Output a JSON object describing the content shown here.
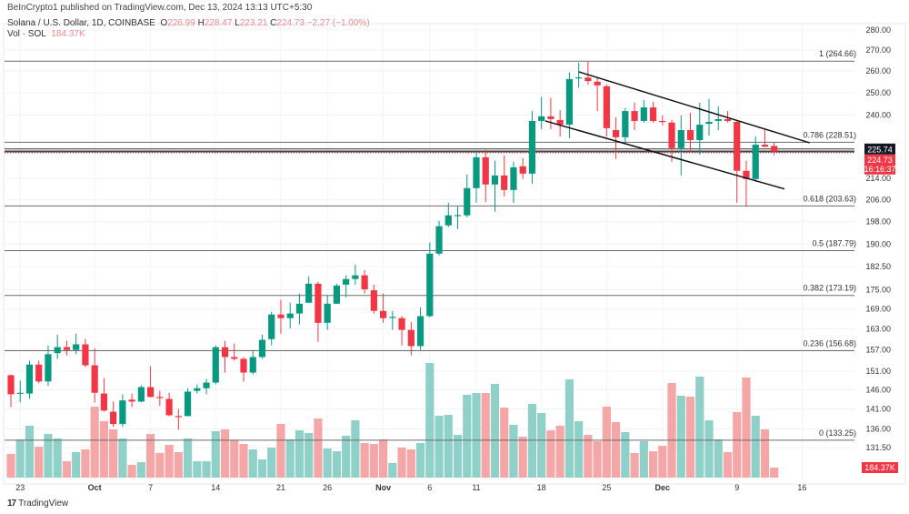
{
  "header": {
    "published": "BeInCrypto1 published on TradingView.com, Dec 13, 2024 13:13 UTC+5:30",
    "symbol": "Solana / U.S. Dollar, 1D, COINBASE",
    "o_label": "O",
    "o": "226.99",
    "h_label": "H",
    "h": "228.47",
    "l_label": "L",
    "l": "223.21",
    "c_label": "C",
    "c": "224.73",
    "change": "−2.27 (−1.00%)",
    "vol_label": "Vol · SOL",
    "vol": "184.37K"
  },
  "footer": {
    "logo_text": "TradingView",
    "logo_mark": "17"
  },
  "colors": {
    "up": "#089981",
    "down": "#f23645",
    "vol_up": "#8fd1c8",
    "vol_down": "#f5a6a6",
    "line": "#555555"
  },
  "chart_data": {
    "type": "candlestick",
    "scale": "log",
    "ylim": [
      131.5,
      280
    ],
    "start_date": "Sep 22, 2024",
    "ohlc": [
      [
        149.9,
        150.1,
        141.5,
        144.8
      ],
      [
        145.0,
        148.4,
        142.7,
        145.2
      ],
      [
        145.0,
        153.9,
        143.6,
        152.8
      ],
      [
        152.8,
        153.9,
        147.7,
        148.2
      ],
      [
        148.2,
        158.2,
        147.0,
        155.7
      ],
      [
        156.0,
        161.3,
        154.4,
        157.7
      ],
      [
        157.7,
        159.5,
        155.4,
        156.9
      ],
      [
        156.9,
        161.6,
        155.7,
        158.5
      ],
      [
        158.5,
        160.0,
        152.1,
        152.6
      ],
      [
        152.6,
        157.4,
        142.7,
        145.2
      ],
      [
        145.0,
        149.1,
        140.3,
        140.6
      ],
      [
        140.3,
        142.9,
        136.5,
        137.2
      ],
      [
        137.2,
        144.8,
        136.5,
        143.2
      ],
      [
        143.4,
        145.0,
        141.5,
        142.9
      ],
      [
        142.9,
        147.2,
        142.7,
        146.7
      ],
      [
        146.7,
        152.3,
        144.0,
        144.1
      ],
      [
        144.1,
        145.7,
        141.8,
        143.8
      ],
      [
        143.6,
        145.2,
        139.2,
        139.4
      ],
      [
        139.2,
        141.0,
        135.8,
        139.1
      ],
      [
        139.2,
        146.4,
        139.2,
        145.5
      ],
      [
        145.7,
        147.4,
        145.0,
        146.4
      ],
      [
        146.4,
        148.9,
        144.8,
        147.9
      ],
      [
        147.9,
        158.2,
        147.4,
        157.7
      ],
      [
        157.7,
        159.5,
        150.6,
        154.9
      ],
      [
        154.9,
        158.7,
        153.9,
        154.4
      ],
      [
        154.4,
        154.9,
        148.2,
        150.6
      ],
      [
        150.6,
        156.9,
        150.1,
        154.9
      ],
      [
        154.9,
        161.3,
        154.4,
        159.8
      ],
      [
        160.0,
        168.1,
        158.2,
        167.3
      ],
      [
        167.3,
        171.8,
        161.6,
        166.2
      ],
      [
        166.2,
        170.9,
        163.2,
        167.6
      ],
      [
        167.6,
        173.8,
        164.3,
        170.6
      ],
      [
        170.9,
        179.3,
        170.9,
        176.9
      ],
      [
        176.9,
        177.5,
        159.2,
        164.8
      ],
      [
        164.8,
        173.2,
        162.7,
        170.6
      ],
      [
        170.6,
        176.9,
        170.6,
        176.3
      ],
      [
        176.6,
        179.6,
        172.6,
        178.4
      ],
      [
        178.4,
        183.1,
        176.6,
        179.6
      ],
      [
        179.6,
        181.3,
        173.8,
        175.1
      ],
      [
        174.8,
        176.6,
        167.6,
        168.4
      ],
      [
        168.4,
        173.8,
        164.8,
        166.2
      ],
      [
        166.5,
        168.4,
        162.7,
        166.6
      ],
      [
        166.2,
        166.8,
        158.2,
        162.7
      ],
      [
        162.7,
        165.1,
        155.4,
        158.0
      ],
      [
        158.0,
        169.5,
        156.9,
        166.8
      ],
      [
        166.8,
        190.6,
        166.5,
        186.8
      ],
      [
        186.8,
        198.2,
        186.2,
        196.3
      ],
      [
        196.6,
        204.8,
        195.9,
        200.2
      ],
      [
        200.2,
        203.4,
        195.3,
        200.3
      ],
      [
        200.2,
        215.6,
        199.5,
        210.3
      ],
      [
        210.3,
        224.6,
        204.8,
        222.4
      ],
      [
        222.4,
        225.4,
        205.1,
        211.7
      ],
      [
        211.7,
        221.0,
        201.5,
        215.2
      ],
      [
        215.2,
        223.1,
        207.2,
        209.6
      ],
      [
        209.6,
        220.6,
        204.8,
        218.4
      ],
      [
        218.8,
        222.0,
        213.8,
        215.9
      ],
      [
        215.9,
        241.8,
        212.0,
        237.5
      ],
      [
        237.5,
        248.1,
        234.0,
        239.5
      ],
      [
        239.5,
        247.7,
        234.0,
        238.3
      ],
      [
        237.9,
        242.2,
        230.9,
        235.9
      ],
      [
        235.9,
        259.4,
        230.2,
        256.2
      ],
      [
        256.9,
        264.0,
        252.2,
        257.0
      ],
      [
        256.9,
        264.5,
        253.7,
        255.3
      ],
      [
        255.0,
        257.1,
        241.8,
        253.3
      ],
      [
        252.9,
        253.7,
        230.9,
        234.4
      ],
      [
        233.6,
        239.1,
        221.7,
        230.6
      ],
      [
        230.6,
        243.1,
        228.3,
        241.8
      ],
      [
        241.8,
        245.5,
        233.6,
        237.5
      ],
      [
        237.5,
        246.7,
        236.8,
        243.4
      ],
      [
        243.4,
        245.9,
        236.8,
        237.5
      ],
      [
        237.5,
        239.9,
        235.6,
        237.1
      ],
      [
        236.8,
        237.9,
        220.6,
        226.1
      ],
      [
        226.1,
        239.9,
        215.2,
        233.6
      ],
      [
        233.6,
        241.0,
        224.6,
        229.4
      ],
      [
        229.4,
        245.5,
        223.5,
        235.9
      ],
      [
        236.3,
        247.1,
        231.3,
        237.1
      ],
      [
        237.5,
        243.9,
        233.6,
        238.3
      ],
      [
        238.3,
        241.8,
        236.8,
        237.5
      ],
      [
        237.1,
        237.9,
        204.8,
        217.0
      ],
      [
        217.0,
        221.0,
        203.4,
        213.8
      ],
      [
        213.8,
        230.9,
        212.7,
        227.5
      ],
      [
        227.5,
        234.0,
        226.5,
        226.7
      ],
      [
        226.99,
        228.47,
        223.21,
        224.73
      ]
    ],
    "volume_k": [
      437,
      706,
      958,
      571,
      806,
      722,
      302,
      470,
      521,
      1310,
      1042,
      890,
      722,
      235,
      286,
      806,
      454,
      605,
      470,
      722,
      302,
      302,
      857,
      890,
      689,
      622,
      521,
      336,
      554,
      991,
      706,
      874,
      823,
      1092,
      538,
      487,
      773,
      1058,
      638,
      622,
      706,
      269,
      554,
      521,
      638,
      2117,
      1142,
      1159,
      790,
      1529,
      1562,
      1562,
      1730,
      1294,
      974,
      756,
      1361,
      1193,
      874,
      958,
      1814,
      1042,
      790,
      672,
      1310,
      1025,
      840,
      454,
      672,
      487,
      588,
      1747,
      1512,
      1495,
      1865,
      1058,
      706,
      470,
      1210,
      1848,
      1142,
      890,
      184.37
    ],
    "x_ticks": [
      {
        "bar": 1,
        "label": "23",
        "bold": false
      },
      {
        "bar": 9,
        "label": "Oct",
        "bold": true
      },
      {
        "bar": 15,
        "label": "7",
        "bold": false
      },
      {
        "bar": 22,
        "label": "14",
        "bold": false
      },
      {
        "bar": 29,
        "label": "21",
        "bold": false
      },
      {
        "bar": 34,
        "label": "26",
        "bold": false
      },
      {
        "bar": 40,
        "label": "Nov",
        "bold": true
      },
      {
        "bar": 45,
        "label": "6",
        "bold": false
      },
      {
        "bar": 50,
        "label": "11",
        "bold": false
      },
      {
        "bar": 57,
        "label": "18",
        "bold": false
      },
      {
        "bar": 64,
        "label": "25",
        "bold": false
      },
      {
        "bar": 70,
        "label": "Dec",
        "bold": true
      },
      {
        "bar": 78,
        "label": "9",
        "bold": false
      },
      {
        "bar": 85,
        "label": "16",
        "bold": false
      }
    ],
    "y_ticks": [
      "280.00",
      "270.00",
      "260.00",
      "250.00",
      "240.00",
      "214.00",
      "206.00",
      "198.00",
      "190.00",
      "182.50",
      "175.00",
      "169.00",
      "163.00",
      "157.00",
      "151.00",
      "146.00",
      "141.00",
      "136.00",
      "131.50"
    ],
    "fib_levels": [
      {
        "ratio": "1",
        "price": 264.66
      },
      {
        "ratio": "0.786",
        "price": 228.51
      },
      {
        "ratio": "0.618",
        "price": 203.63
      },
      {
        "ratio": "0.5",
        "price": 187.79
      },
      {
        "ratio": "0.382",
        "price": 173.19
      },
      {
        "ratio": "0.236",
        "price": 156.68
      },
      {
        "ratio": "0",
        "price": 133.25
      }
    ],
    "horizontal_line": {
      "price": 225.74,
      "label": "225.74"
    },
    "last_price": {
      "price": 224.73,
      "label": "224.73",
      "countdown": "16:16:37"
    },
    "last_volume_label": "184.37K",
    "channel": {
      "upper": [
        [
          61.0,
          259.6
        ],
        [
          85.8,
          228.3
        ]
      ],
      "lower": [
        [
          57.4,
          237.5
        ],
        [
          83.1,
          210.0
        ]
      ]
    }
  }
}
